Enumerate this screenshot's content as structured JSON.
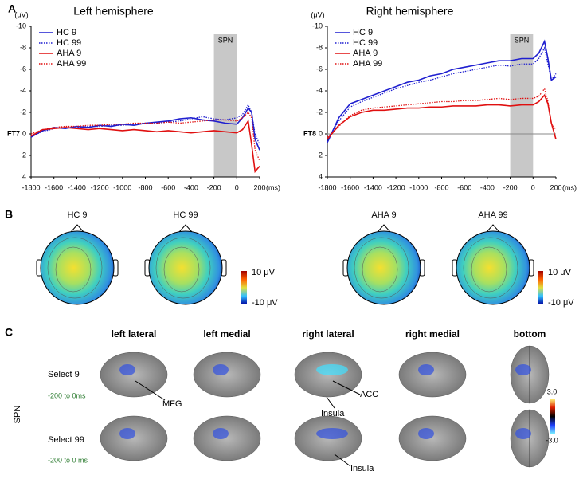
{
  "chart_data": [
    {
      "type": "line",
      "panel": "A",
      "title": "Left hemisphere",
      "xlabel": "(ms)",
      "ylabel": "(μV)",
      "channel": "FT7",
      "invert_y": true,
      "zero_line": false,
      "shade": {
        "label": "SPN",
        "x": [
          -200,
          0
        ],
        "color": "#c8c8c8"
      },
      "x": [
        -1800,
        -1700,
        -1600,
        -1500,
        -1400,
        -1300,
        -1200,
        -1100,
        -1000,
        -900,
        -800,
        -700,
        -600,
        -500,
        -400,
        -300,
        -200,
        -100,
        0,
        50,
        100,
        130,
        160,
        200
      ],
      "series": [
        {
          "name": "HC 9",
          "color": "#1f1fd0",
          "style": "solid",
          "values": [
            0.3,
            -0.3,
            -0.6,
            -0.5,
            -0.7,
            -0.6,
            -0.8,
            -0.7,
            -0.9,
            -0.8,
            -1.0,
            -1.1,
            -1.2,
            -1.4,
            -1.5,
            -1.3,
            -1.2,
            -1.0,
            -0.9,
            -1.5,
            -2.4,
            -2.0,
            0.5,
            1.5
          ]
        },
        {
          "name": "HC 99",
          "color": "#1f1fd0",
          "style": "dotted",
          "values": [
            0.2,
            -0.2,
            -0.5,
            -0.6,
            -0.6,
            -0.7,
            -0.7,
            -0.8,
            -0.8,
            -0.9,
            -1.0,
            -1.0,
            -1.1,
            -1.2,
            -1.4,
            -1.6,
            -1.4,
            -1.3,
            -1.5,
            -1.8,
            -2.7,
            -2.0,
            0.0,
            1.0
          ]
        },
        {
          "name": "AHA 9",
          "color": "#e01010",
          "style": "solid",
          "values": [
            0.2,
            -0.4,
            -0.5,
            -0.6,
            -0.5,
            -0.4,
            -0.5,
            -0.4,
            -0.3,
            -0.4,
            -0.3,
            -0.2,
            -0.3,
            -0.2,
            -0.1,
            -0.2,
            -0.3,
            -0.2,
            -0.1,
            -0.4,
            -1.2,
            1.0,
            3.5,
            3.0
          ]
        },
        {
          "name": "AHA 99",
          "color": "#e01010",
          "style": "dotted",
          "values": [
            0.0,
            -0.4,
            -0.6,
            -0.7,
            -0.7,
            -0.8,
            -0.8,
            -0.9,
            -0.9,
            -1.0,
            -1.0,
            -1.0,
            -1.1,
            -1.0,
            -1.1,
            -1.2,
            -1.3,
            -1.3,
            -1.2,
            -1.5,
            -2.0,
            -1.5,
            1.5,
            2.5
          ]
        }
      ],
      "xlim": [
        -1800,
        200
      ],
      "xticks": [
        -1800,
        -1600,
        -1400,
        -1200,
        -1000,
        -800,
        -600,
        -400,
        -200,
        0,
        200
      ],
      "ylim": [
        -10,
        4
      ],
      "yticks": [
        -10,
        -8,
        -6,
        -4,
        -2,
        0,
        2,
        4
      ]
    },
    {
      "type": "line",
      "title": "Right hemisphere",
      "xlabel": "(ms)",
      "ylabel": "(μV)",
      "channel": "FT8",
      "invert_y": true,
      "zero_line": true,
      "shade": {
        "label": "SPN",
        "x": [
          -200,
          0
        ],
        "color": "#c8c8c8"
      },
      "x": [
        -1800,
        -1700,
        -1600,
        -1500,
        -1400,
        -1300,
        -1200,
        -1100,
        -1000,
        -900,
        -800,
        -700,
        -600,
        -500,
        -400,
        -300,
        -200,
        -100,
        0,
        50,
        100,
        130,
        160,
        200
      ],
      "series": [
        {
          "name": "HC 9",
          "color": "#1f1fd0",
          "style": "solid",
          "values": [
            0.8,
            -1.5,
            -2.8,
            -3.2,
            -3.6,
            -4.0,
            -4.4,
            -4.8,
            -5.0,
            -5.4,
            -5.6,
            -6.0,
            -6.2,
            -6.4,
            -6.6,
            -6.8,
            -6.8,
            -7.0,
            -7.0,
            -7.5,
            -8.6,
            -7.0,
            -5.0,
            -5.3
          ]
        },
        {
          "name": "HC 99",
          "color": "#1f1fd0",
          "style": "dotted",
          "values": [
            0.5,
            -1.2,
            -2.5,
            -3.0,
            -3.4,
            -3.8,
            -4.2,
            -4.5,
            -4.8,
            -5.0,
            -5.3,
            -5.6,
            -5.8,
            -6.0,
            -6.2,
            -6.4,
            -6.3,
            -6.5,
            -6.5,
            -7.0,
            -8.0,
            -6.5,
            -5.0,
            -5.6
          ]
        },
        {
          "name": "AHA 9",
          "color": "#e01010",
          "style": "solid",
          "values": [
            0.5,
            -0.8,
            -1.6,
            -2.0,
            -2.2,
            -2.2,
            -2.3,
            -2.4,
            -2.4,
            -2.5,
            -2.5,
            -2.6,
            -2.6,
            -2.6,
            -2.7,
            -2.7,
            -2.6,
            -2.7,
            -2.7,
            -3.0,
            -3.6,
            -2.8,
            -1.0,
            0.5
          ]
        },
        {
          "name": "AHA 99",
          "color": "#e01010",
          "style": "dotted",
          "values": [
            0.3,
            -0.7,
            -1.7,
            -2.2,
            -2.4,
            -2.5,
            -2.6,
            -2.7,
            -2.8,
            -2.9,
            -3.0,
            -3.0,
            -3.1,
            -3.1,
            -3.2,
            -3.3,
            -3.2,
            -3.3,
            -3.3,
            -3.5,
            -4.2,
            -3.0,
            -1.0,
            -0.4
          ]
        }
      ],
      "xlim": [
        -1800,
        200
      ],
      "xticks": [
        -1800,
        -1600,
        -1400,
        -1200,
        -1000,
        -800,
        -600,
        -400,
        -200,
        0,
        200
      ],
      "ylim": [
        -10,
        4
      ],
      "yticks": [
        -10,
        -8,
        -6,
        -4,
        -2,
        0,
        2,
        4
      ]
    }
  ],
  "panel_b": {
    "label": "B",
    "maps": [
      "HC 9",
      "HC 99",
      "AHA 9",
      "AHA 99"
    ],
    "colorbars": [
      {
        "max": "10 μV",
        "min": "-10 μV"
      },
      {
        "max": "10 μV",
        "min": "-10 μV"
      }
    ]
  },
  "panel_c": {
    "label": "C",
    "side_label": "SPN",
    "columns": [
      "left lateral",
      "left medial",
      "right lateral",
      "right medial",
      "bottom"
    ],
    "rows": [
      {
        "label": "Select 9",
        "window": "-200 to 0ms"
      },
      {
        "label": "Select 99",
        "window": "-200 to 0 ms"
      }
    ],
    "annotations": [
      "MFG",
      "ACC",
      "Insula",
      "Insula"
    ],
    "colorbar": {
      "max": "3.0",
      "min": "-3.0"
    }
  }
}
